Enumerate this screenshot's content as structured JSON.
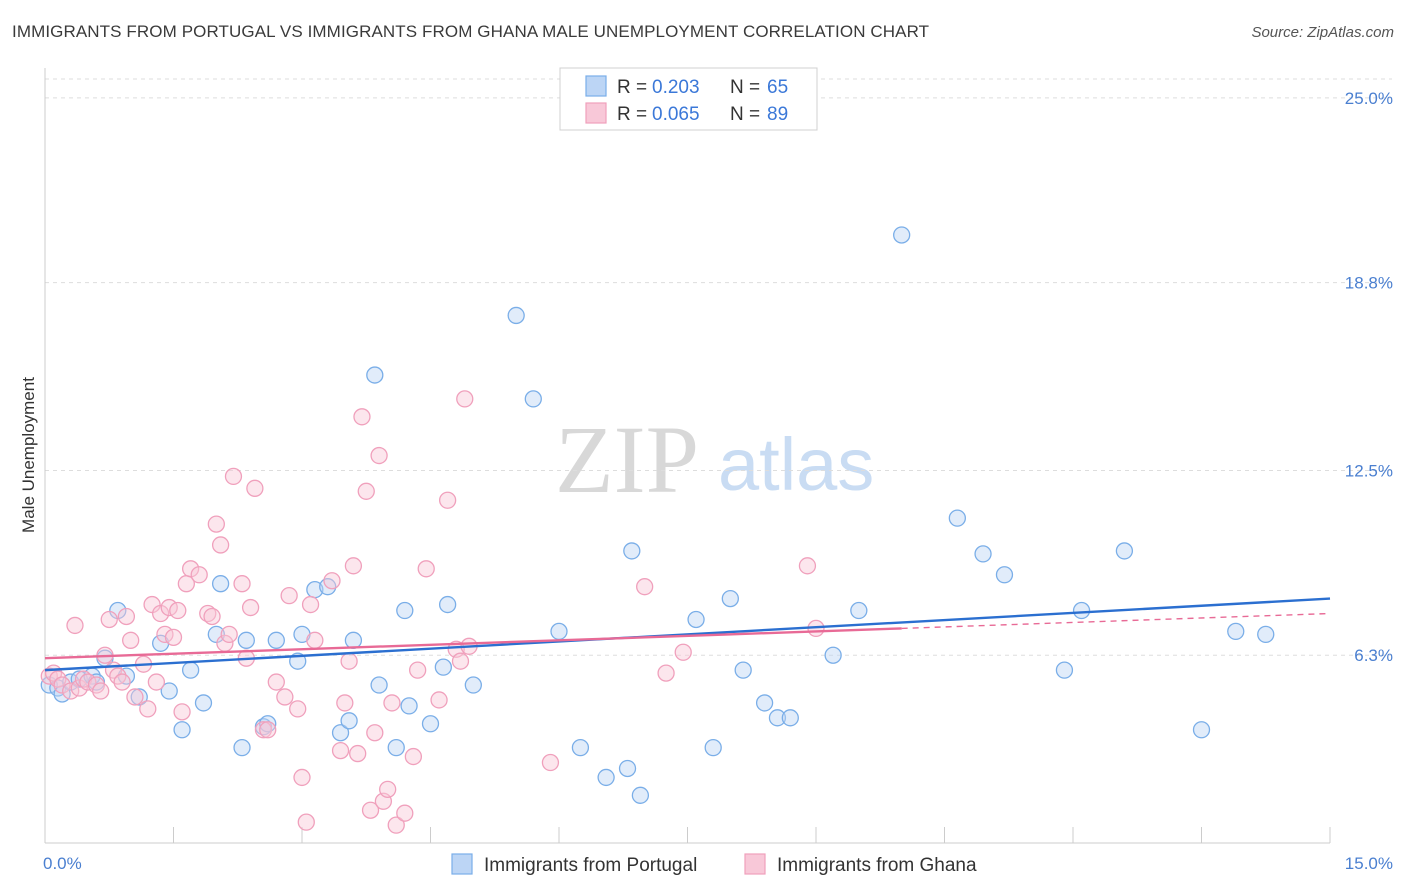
{
  "title": "IMMIGRANTS FROM PORTUGAL VS IMMIGRANTS FROM GHANA MALE UNEMPLOYMENT CORRELATION CHART",
  "source": "Source: ZipAtlas.com",
  "watermark": {
    "zip": "ZIP",
    "atlas": "atlas"
  },
  "legend": {
    "rows": [
      {
        "r_label": "R = ",
        "r_value": "0.203",
        "n_label": "N = ",
        "n_value": "65"
      },
      {
        "r_label": "R = ",
        "r_value": "0.065",
        "n_label": "N = ",
        "n_value": "89"
      }
    ]
  },
  "chart_data": {
    "type": "scatter",
    "title": "IMMIGRANTS FROM PORTUGAL VS IMMIGRANTS FROM GHANA MALE UNEMPLOYMENT CORRELATION CHART",
    "xlabel": "",
    "ylabel": "Male Unemployment",
    "xlim": [
      0,
      15
    ],
    "ylim": [
      0,
      25.6
    ],
    "x_tick_labels": [
      "0.0%",
      "15.0%"
    ],
    "y_ticks": [
      {
        "value": 6.3,
        "label": "6.3%"
      },
      {
        "value": 12.5,
        "label": "12.5%"
      },
      {
        "value": 18.8,
        "label": "18.8%"
      },
      {
        "value": 25.0,
        "label": "25.0%"
      }
    ],
    "grid": true,
    "legend_position": "top-center",
    "series": [
      {
        "name": "Immigrants from Portugal",
        "color": "#7aaee8",
        "fill": "#bcd5f5",
        "line_color": "#2b6fd0",
        "trend": {
          "x": [
            0,
            15
          ],
          "y": [
            5.8,
            8.2
          ]
        },
        "points": [
          [
            0.05,
            5.3
          ],
          [
            0.15,
            5.2
          ],
          [
            0.2,
            5.0
          ],
          [
            0.3,
            5.4
          ],
          [
            0.4,
            5.5
          ],
          [
            0.55,
            5.6
          ],
          [
            0.6,
            5.4
          ],
          [
            0.7,
            6.2
          ],
          [
            0.85,
            7.8
          ],
          [
            0.95,
            5.6
          ],
          [
            1.1,
            4.9
          ],
          [
            1.35,
            6.7
          ],
          [
            1.45,
            5.1
          ],
          [
            1.6,
            3.8
          ],
          [
            1.7,
            5.8
          ],
          [
            1.85,
            4.7
          ],
          [
            2.0,
            7.0
          ],
          [
            2.05,
            8.7
          ],
          [
            2.3,
            3.2
          ],
          [
            2.35,
            6.8
          ],
          [
            2.55,
            3.9
          ],
          [
            2.6,
            4.0
          ],
          [
            2.7,
            6.8
          ],
          [
            2.95,
            6.1
          ],
          [
            3.0,
            7.0
          ],
          [
            3.15,
            8.5
          ],
          [
            3.3,
            8.6
          ],
          [
            3.45,
            3.7
          ],
          [
            3.55,
            4.1
          ],
          [
            3.6,
            6.8
          ],
          [
            3.85,
            15.7
          ],
          [
            3.9,
            5.3
          ],
          [
            4.1,
            3.2
          ],
          [
            4.2,
            7.8
          ],
          [
            4.25,
            4.6
          ],
          [
            4.5,
            4.0
          ],
          [
            4.65,
            5.9
          ],
          [
            4.7,
            8.0
          ],
          [
            5.0,
            5.3
          ],
          [
            5.5,
            17.7
          ],
          [
            5.7,
            14.9
          ],
          [
            6.0,
            7.1
          ],
          [
            6.25,
            3.2
          ],
          [
            6.55,
            2.2
          ],
          [
            6.8,
            2.5
          ],
          [
            6.85,
            9.8
          ],
          [
            6.95,
            1.6
          ],
          [
            7.6,
            7.5
          ],
          [
            7.8,
            3.2
          ],
          [
            8.0,
            8.2
          ],
          [
            8.15,
            5.8
          ],
          [
            8.4,
            4.7
          ],
          [
            8.55,
            4.2
          ],
          [
            8.7,
            4.2
          ],
          [
            9.2,
            6.3
          ],
          [
            9.5,
            7.8
          ],
          [
            10.0,
            20.4
          ],
          [
            10.65,
            10.9
          ],
          [
            10.95,
            9.7
          ],
          [
            11.2,
            9.0
          ],
          [
            11.9,
            5.8
          ],
          [
            12.1,
            7.8
          ],
          [
            12.6,
            9.8
          ],
          [
            13.5,
            3.8
          ],
          [
            13.9,
            7.1
          ],
          [
            14.25,
            7.0
          ]
        ]
      },
      {
        "name": "Immigrants from Ghana",
        "color": "#f0a0bc",
        "fill": "#f8c8d8",
        "line_color": "#e86a96",
        "trend": {
          "x": [
            0,
            10.0
          ],
          "y": [
            6.2,
            7.2
          ]
        },
        "trend_dashed": {
          "x": [
            10.0,
            15
          ],
          "y": [
            7.2,
            7.7
          ]
        },
        "points": [
          [
            0.05,
            5.6
          ],
          [
            0.1,
            5.7
          ],
          [
            0.15,
            5.5
          ],
          [
            0.2,
            5.3
          ],
          [
            0.3,
            5.1
          ],
          [
            0.35,
            7.3
          ],
          [
            0.4,
            5.2
          ],
          [
            0.45,
            5.5
          ],
          [
            0.5,
            5.4
          ],
          [
            0.6,
            5.3
          ],
          [
            0.65,
            5.1
          ],
          [
            0.7,
            6.3
          ],
          [
            0.75,
            7.5
          ],
          [
            0.8,
            5.8
          ],
          [
            0.85,
            5.6
          ],
          [
            0.9,
            5.4
          ],
          [
            0.95,
            7.6
          ],
          [
            1.0,
            6.8
          ],
          [
            1.05,
            4.9
          ],
          [
            1.15,
            6.0
          ],
          [
            1.2,
            4.5
          ],
          [
            1.3,
            5.4
          ],
          [
            1.25,
            8.0
          ],
          [
            1.35,
            7.7
          ],
          [
            1.4,
            7.0
          ],
          [
            1.45,
            7.9
          ],
          [
            1.5,
            6.9
          ],
          [
            1.55,
            7.8
          ],
          [
            1.6,
            4.4
          ],
          [
            1.65,
            8.7
          ],
          [
            1.7,
            9.2
          ],
          [
            1.8,
            9.0
          ],
          [
            1.9,
            7.7
          ],
          [
            1.95,
            7.6
          ],
          [
            2.0,
            10.7
          ],
          [
            2.05,
            10.0
          ],
          [
            2.1,
            6.7
          ],
          [
            2.15,
            7.0
          ],
          [
            2.2,
            12.3
          ],
          [
            2.3,
            8.7
          ],
          [
            2.35,
            6.2
          ],
          [
            2.4,
            7.9
          ],
          [
            2.45,
            11.9
          ],
          [
            2.55,
            3.8
          ],
          [
            2.6,
            3.8
          ],
          [
            2.7,
            5.4
          ],
          [
            2.8,
            4.9
          ],
          [
            2.85,
            8.3
          ],
          [
            2.95,
            4.5
          ],
          [
            3.0,
            2.2
          ],
          [
            3.05,
            0.7
          ],
          [
            3.1,
            8.0
          ],
          [
            3.15,
            6.8
          ],
          [
            3.35,
            8.8
          ],
          [
            3.45,
            3.1
          ],
          [
            3.5,
            4.7
          ],
          [
            3.55,
            6.1
          ],
          [
            3.6,
            9.3
          ],
          [
            3.65,
            3.0
          ],
          [
            3.7,
            14.3
          ],
          [
            3.75,
            11.8
          ],
          [
            3.8,
            1.1
          ],
          [
            3.85,
            3.7
          ],
          [
            3.9,
            13.0
          ],
          [
            3.95,
            1.4
          ],
          [
            4.0,
            1.8
          ],
          [
            4.05,
            4.7
          ],
          [
            4.1,
            0.6
          ],
          [
            4.2,
            1.0
          ],
          [
            4.3,
            2.9
          ],
          [
            4.35,
            5.8
          ],
          [
            4.45,
            9.2
          ],
          [
            4.6,
            4.8
          ],
          [
            4.7,
            11.5
          ],
          [
            4.8,
            6.5
          ],
          [
            4.85,
            6.1
          ],
          [
            4.9,
            14.9
          ],
          [
            4.95,
            6.6
          ],
          [
            5.9,
            2.7
          ],
          [
            7.0,
            8.6
          ],
          [
            7.25,
            5.7
          ],
          [
            7.45,
            6.4
          ],
          [
            8.9,
            9.3
          ],
          [
            9.0,
            7.2
          ]
        ]
      }
    ]
  },
  "bottom_legend": {
    "portugal": "Immigrants from Portugal",
    "ghana": "Immigrants from Ghana"
  }
}
